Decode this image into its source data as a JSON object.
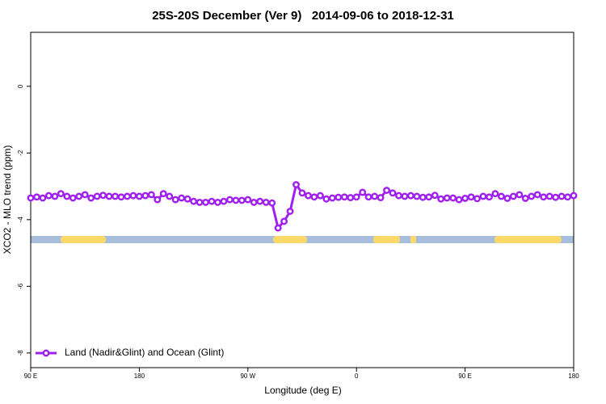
{
  "chart_data": {
    "type": "line",
    "title": "25S-20S December (Ver 9)   2014-09-06 to 2018-12-31",
    "x_label": "Longitude (deg E)",
    "y_label": "XCO2 - MLO trend (ppm)",
    "xlim": [
      90,
      540
    ],
    "xticks": [
      {
        "value": 90,
        "label": "90 E"
      },
      {
        "value": 180,
        "label": "180"
      },
      {
        "value": 270,
        "label": "90 W"
      },
      {
        "value": 360,
        "label": "0"
      },
      {
        "value": 450,
        "label": "90 E"
      },
      {
        "value": 540,
        "label": "180"
      }
    ],
    "ylim": [
      -8.44,
      1.62
    ],
    "yticks": [
      0,
      -2,
      -4,
      -6,
      -8
    ],
    "legend": "bottom-left",
    "x": [
      90,
      95,
      100,
      105,
      110,
      115,
      120,
      125,
      130,
      135,
      140,
      145,
      150,
      155,
      160,
      165,
      170,
      175,
      180,
      185,
      190,
      195,
      200,
      205,
      210,
      215,
      220,
      225,
      230,
      235,
      240,
      245,
      250,
      255,
      260,
      265,
      270,
      275,
      280,
      285,
      290,
      295,
      300,
      305,
      310,
      315,
      320,
      325,
      330,
      335,
      340,
      345,
      350,
      355,
      360,
      365,
      370,
      375,
      380,
      385,
      390,
      395,
      400,
      405,
      410,
      415,
      420,
      425,
      430,
      435,
      440,
      445,
      450,
      455,
      460,
      465,
      470,
      475,
      480,
      485,
      490,
      495,
      500,
      505,
      510,
      515,
      520,
      525,
      530,
      535,
      540
    ],
    "series": [
      {
        "name": "Land (Nadir&Glint) and Ocean (Glint)",
        "color": "#a020f0",
        "values": [
          -3.35,
          -3.32,
          -3.35,
          -3.28,
          -3.3,
          -3.22,
          -3.3,
          -3.35,
          -3.3,
          -3.25,
          -3.35,
          -3.3,
          -3.27,
          -3.3,
          -3.3,
          -3.32,
          -3.3,
          -3.28,
          -3.3,
          -3.28,
          -3.25,
          -3.4,
          -3.22,
          -3.3,
          -3.4,
          -3.35,
          -3.38,
          -3.45,
          -3.48,
          -3.48,
          -3.45,
          -3.48,
          -3.45,
          -3.4,
          -3.42,
          -3.42,
          -3.4,
          -3.48,
          -3.45,
          -3.48,
          -3.5,
          -4.25,
          -4.05,
          -3.75,
          -2.95,
          -3.2,
          -3.28,
          -3.32,
          -3.28,
          -3.38,
          -3.35,
          -3.33,
          -3.32,
          -3.34,
          -3.32,
          -3.18,
          -3.32,
          -3.3,
          -3.34,
          -3.12,
          -3.2,
          -3.28,
          -3.3,
          -3.28,
          -3.3,
          -3.33,
          -3.32,
          -3.27,
          -3.38,
          -3.35,
          -3.35,
          -3.4,
          -3.36,
          -3.32,
          -3.37,
          -3.3,
          -3.32,
          -3.22,
          -3.3,
          -3.36,
          -3.3,
          -3.25,
          -3.36,
          -3.3,
          -3.25,
          -3.32,
          -3.3,
          -3.33,
          -3.3,
          -3.32,
          -3.28
        ]
      }
    ]
  }
}
